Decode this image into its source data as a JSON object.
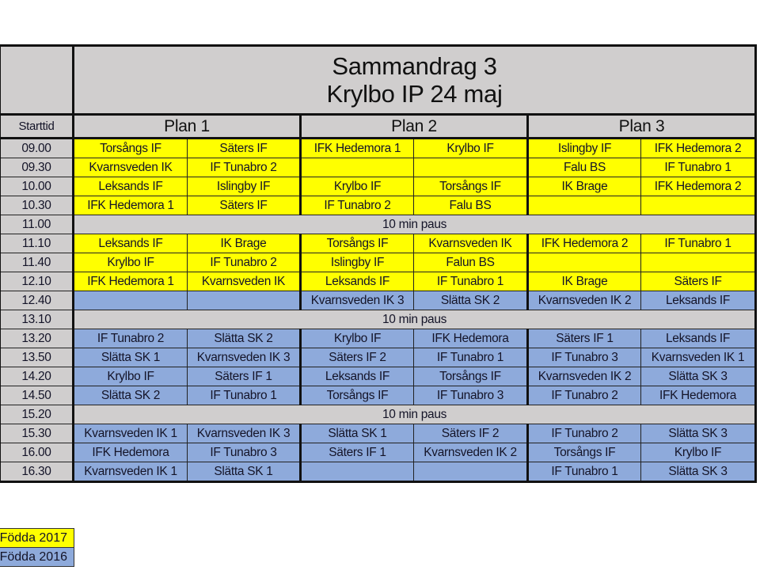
{
  "title": {
    "line1": "Sammandrag 3",
    "line2": "Krylbo IP 24 maj"
  },
  "header": {
    "starttid": "Starttid",
    "plans": [
      "Plan 1",
      "Plan 2",
      "Plan 3"
    ]
  },
  "colors": {
    "f2017": "#ffff00",
    "f2016": "#8eaadb",
    "pause": "#d0cece"
  },
  "rows": [
    {
      "time": "09.00",
      "type": "y",
      "cells": [
        "Torsångs IF",
        "Säters IF",
        "IFK Hedemora 1",
        "Krylbo IF",
        "Islingby IF",
        "IFK Hedemora 2"
      ]
    },
    {
      "time": "09.30",
      "type": "y",
      "cells": [
        "Kvarnsveden IK",
        "IF Tunabro 2",
        "",
        "",
        "Falu BS",
        "IF Tunabro 1"
      ]
    },
    {
      "time": "10.00",
      "type": "y",
      "cells": [
        "Leksands IF",
        "Islingby IF",
        "Krylbo IF",
        "Torsångs IF",
        "IK Brage",
        "IFK Hedemora 2"
      ]
    },
    {
      "time": "10.30",
      "type": "y",
      "cells": [
        "IFK Hedemora 1",
        "Säters IF",
        "IF Tunabro 2",
        "Falu BS",
        "",
        ""
      ]
    },
    {
      "time": "11.00",
      "type": "p",
      "pause": "10 min paus"
    },
    {
      "time": "11.10",
      "type": "y",
      "cells": [
        "Leksands IF",
        "IK Brage",
        "Torsångs IF",
        "Kvarnsveden IK",
        "IFK Hedemora 2",
        "IF Tunabro 1"
      ]
    },
    {
      "time": "11.40",
      "type": "y",
      "cells": [
        "Krylbo IF",
        "IF Tunabro 2",
        "Islingby IF",
        "Falun BS",
        "",
        ""
      ]
    },
    {
      "time": "12.10",
      "type": "y",
      "cells": [
        "IFK Hedemora 1",
        "Kvarnsveden IK",
        "Leksands IF",
        "IF Tunabro 1",
        "IK Brage",
        "Säters IF"
      ]
    },
    {
      "time": "12.40",
      "type": "b",
      "cells": [
        "",
        "",
        "Kvarnsveden IK 3",
        "Slätta SK 2",
        "Kvarnsveden IK 2",
        "Leksands IF"
      ]
    },
    {
      "time": "13.10",
      "type": "p",
      "pause": "10 min paus"
    },
    {
      "time": "13.20",
      "type": "b",
      "cells": [
        "IF Tunabro 2",
        "Slätta SK 2",
        "Krylbo IF",
        "IFK Hedemora",
        "Säters IF 1",
        "Leksands IF"
      ]
    },
    {
      "time": "13.50",
      "type": "b",
      "cells": [
        "Slätta SK 1",
        "Kvarnsveden IK 3",
        "Säters IF 2",
        "IF Tunabro 1",
        "IF Tunabro 3",
        "Kvarnsveden IK 1"
      ]
    },
    {
      "time": "14.20",
      "type": "b",
      "cells": [
        "Krylbo IF",
        "Säters IF 1",
        "Leksands IF",
        "Torsångs IF",
        "Kvarnsveden IK 2",
        "Slätta SK 3"
      ]
    },
    {
      "time": "14.50",
      "type": "b",
      "cells": [
        "Slätta SK 2",
        "IF Tunabro 1",
        "Torsångs IF",
        "IF Tunabro 3",
        "IF Tunabro 2",
        "IFK Hedemora"
      ]
    },
    {
      "time": "15.20",
      "type": "p",
      "pause": "10 min paus"
    },
    {
      "time": "15.30",
      "type": "b",
      "cells": [
        "Kvarnsveden IK 1",
        "Kvarnsveden IK 3",
        "Slätta SK 1",
        "Säters IF 2",
        "IF Tunabro 2",
        "Slätta SK 3"
      ]
    },
    {
      "time": "16.00",
      "type": "b",
      "cells": [
        "IFK Hedemora",
        "IF Tunabro 3",
        "Säters IF 1",
        "Kvarnsveden IK 2",
        "Torsångs IF",
        "Krylbo IF"
      ]
    },
    {
      "time": "16.30",
      "type": "b",
      "cells": [
        "Kvarnsveden IK 1",
        "Slätta SK 1",
        "",
        "",
        "IF Tunabro 1",
        "Slätta SK 3"
      ]
    }
  ],
  "legend": [
    "Födda 2017",
    "Födda 2016"
  ]
}
